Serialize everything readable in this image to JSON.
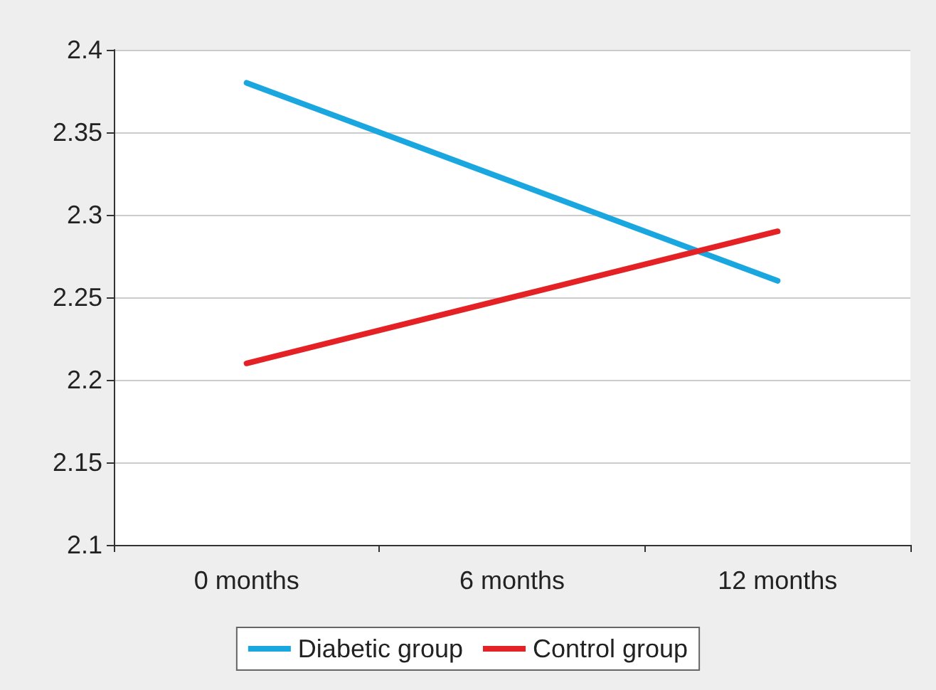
{
  "chart_data": {
    "type": "line",
    "categories": [
      "0 months",
      "6 months",
      "12 months"
    ],
    "series": [
      {
        "name": "Diabetic group",
        "color": "#1aa7e0",
        "values": [
          2.38,
          2.32,
          2.26
        ]
      },
      {
        "name": "Control group",
        "color": "#e42226",
        "values": [
          2.21,
          2.25,
          2.29
        ]
      }
    ],
    "ylim": [
      2.1,
      2.4
    ],
    "yticks": [
      2.1,
      2.15,
      2.2,
      2.25,
      2.3,
      2.35,
      2.4
    ],
    "grid": "y",
    "legend": "bottom",
    "marker": "none",
    "line_style": "solid"
  }
}
